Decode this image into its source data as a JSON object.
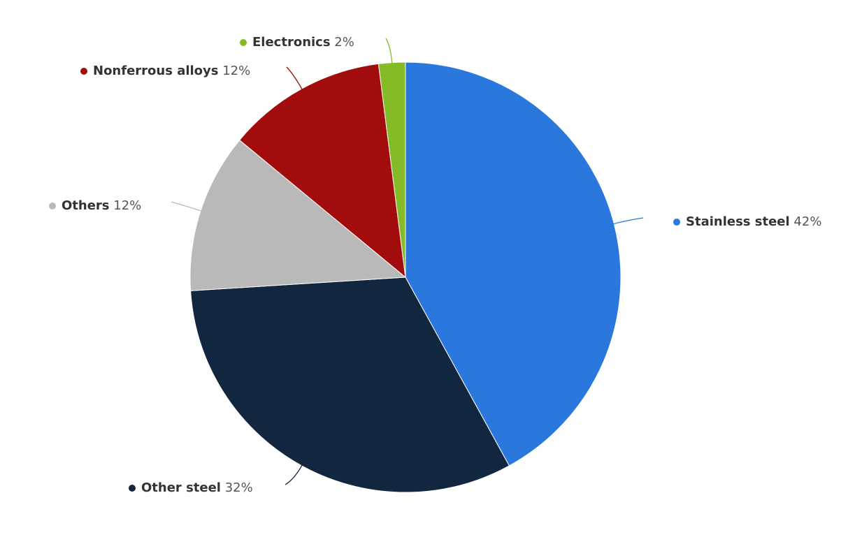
{
  "chart_data": {
    "type": "pie",
    "categories": [
      "Stainless steel",
      "Other steel",
      "Others",
      "Nonferrous alloys",
      "Electronics"
    ],
    "values": [
      42,
      32,
      12,
      12,
      2
    ],
    "value_labels": [
      "42%",
      "32%",
      "12%",
      "12%",
      "2%"
    ],
    "colors": [
      "#2a78de",
      "#12263f",
      "#b9b9b9",
      "#a30c0c",
      "#84bb26"
    ]
  }
}
